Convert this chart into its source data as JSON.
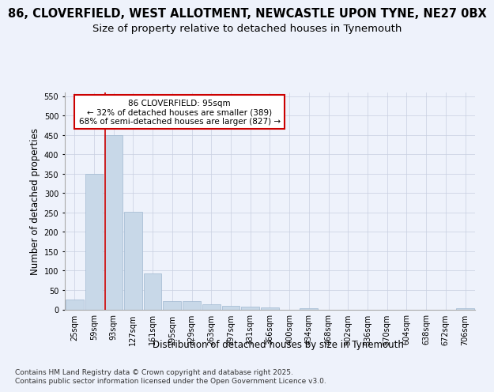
{
  "title_line1": "86, CLOVERFIELD, WEST ALLOTMENT, NEWCASTLE UPON TYNE, NE27 0BX",
  "title_line2": "Size of property relative to detached houses in Tynemouth",
  "xlabel": "Distribution of detached houses by size in Tynemouth",
  "ylabel": "Number of detached properties",
  "categories": [
    "25sqm",
    "59sqm",
    "93sqm",
    "127sqm",
    "161sqm",
    "195sqm",
    "229sqm",
    "263sqm",
    "297sqm",
    "331sqm",
    "366sqm",
    "400sqm",
    "434sqm",
    "468sqm",
    "502sqm",
    "536sqm",
    "570sqm",
    "604sqm",
    "638sqm",
    "672sqm",
    "706sqm"
  ],
  "values": [
    25,
    350,
    450,
    252,
    92,
    22,
    22,
    13,
    10,
    7,
    5,
    0,
    4,
    0,
    0,
    0,
    0,
    0,
    0,
    0,
    4
  ],
  "bar_color": "#c8d8e8",
  "bar_edge_color": "#a0b8d0",
  "red_line_x": 1.55,
  "marker_label": "86 CLOVERFIELD: 95sqm",
  "marker_sub1": "← 32% of detached houses are smaller (389)",
  "marker_sub2": "68% of semi-detached houses are larger (827) →",
  "marker_color": "#cc0000",
  "annotation_box_color": "#ffffff",
  "annotation_box_edge": "#cc0000",
  "ylim": [
    0,
    560
  ],
  "yticks": [
    0,
    50,
    100,
    150,
    200,
    250,
    300,
    350,
    400,
    450,
    500,
    550
  ],
  "background_color": "#eef2fb",
  "grid_color": "#c8cfe0",
  "footer": "Contains HM Land Registry data © Crown copyright and database right 2025.\nContains public sector information licensed under the Open Government Licence v3.0.",
  "title_fontsize": 10.5,
  "subtitle_fontsize": 9.5,
  "axis_label_fontsize": 8.5,
  "tick_fontsize": 7,
  "footer_fontsize": 6.5,
  "annotation_fontsize": 7.5
}
